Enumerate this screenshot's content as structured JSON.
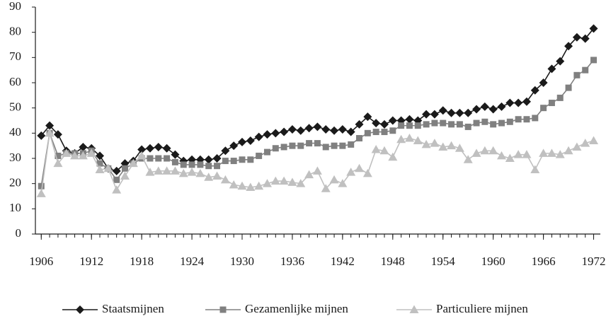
{
  "chart_data": {
    "type": "line",
    "x": [
      1906,
      1907,
      1908,
      1909,
      1910,
      1911,
      1912,
      1913,
      1914,
      1915,
      1916,
      1917,
      1918,
      1919,
      1920,
      1921,
      1922,
      1923,
      1924,
      1925,
      1926,
      1927,
      1928,
      1929,
      1930,
      1931,
      1932,
      1933,
      1934,
      1935,
      1936,
      1937,
      1938,
      1939,
      1940,
      1941,
      1942,
      1943,
      1944,
      1945,
      1946,
      1947,
      1948,
      1949,
      1950,
      1951,
      1952,
      1953,
      1954,
      1955,
      1956,
      1957,
      1958,
      1959,
      1960,
      1961,
      1962,
      1963,
      1964,
      1965,
      1966,
      1967,
      1968,
      1969,
      1970,
      1971,
      1972
    ],
    "series": [
      {
        "name": "Staatsmijnen",
        "color": "#1a1a1a",
        "marker": "diamond",
        "values": [
          39,
          43,
          39.5,
          33,
          32,
          34.5,
          34,
          31,
          26,
          25,
          28,
          29,
          33.5,
          34,
          34.5,
          34,
          31.5,
          29,
          29.5,
          29.5,
          29.5,
          30,
          33,
          35,
          36.5,
          37,
          38.5,
          39.5,
          40,
          40.5,
          41.5,
          41,
          42,
          42.5,
          41.5,
          41,
          41.5,
          40.5,
          43.5,
          46.5,
          44,
          43.5,
          45,
          45,
          45.5,
          45,
          47.5,
          47.5,
          49,
          48,
          48,
          48,
          49.5,
          50.5,
          49.5,
          50.5,
          52,
          52,
          52.5,
          57,
          60,
          65.5,
          68.5,
          74.5,
          78,
          77.5,
          81.5
        ]
      },
      {
        "name": "Gezamenlijke mijnen",
        "color": "#808080",
        "marker": "square",
        "values": [
          19,
          40,
          31,
          32,
          32,
          32,
          33,
          28,
          26,
          21.5,
          26,
          28,
          30,
          30,
          30,
          30,
          28.5,
          27.5,
          27.5,
          27.5,
          27,
          27,
          29,
          29,
          29.5,
          29.5,
          31,
          32.5,
          34,
          34.5,
          35,
          35,
          36,
          36,
          34.5,
          35,
          35,
          35.5,
          38,
          40,
          40.5,
          40.5,
          41,
          43,
          43,
          43,
          43.5,
          44,
          44,
          43.5,
          43.5,
          42.5,
          44,
          44.5,
          43.5,
          44,
          44.5,
          45.5,
          45.5,
          46,
          50,
          52,
          54,
          58,
          63,
          65,
          69
        ]
      },
      {
        "name": "Particuliere mijnen",
        "color": "#c0c0c0",
        "marker": "triangle",
        "values": [
          16,
          40,
          28,
          32,
          31,
          31,
          32,
          25.5,
          26,
          17.5,
          23,
          28,
          31,
          24.5,
          25,
          25,
          25,
          24,
          24.5,
          24,
          22.5,
          23,
          21.5,
          19.5,
          19,
          18.5,
          19,
          20,
          21,
          21,
          20.5,
          20,
          23.5,
          25,
          18,
          21.5,
          20,
          24.5,
          26,
          24,
          33.5,
          33,
          30.5,
          37.5,
          38,
          37,
          35.5,
          36,
          34.5,
          35,
          34,
          29.5,
          32,
          33,
          33,
          31,
          30,
          31.5,
          31.5,
          25.5,
          32,
          32,
          31.5,
          33,
          34.5,
          36,
          37
        ]
      }
    ],
    "xlim": [
      1905.3,
      1972.8
    ],
    "xticks": [
      1906,
      1912,
      1918,
      1924,
      1930,
      1936,
      1942,
      1948,
      1954,
      1960,
      1966,
      1972
    ],
    "ylim": [
      0,
      90
    ],
    "yticks": [
      0,
      10,
      20,
      30,
      40,
      50,
      60,
      70,
      80,
      90
    ],
    "grid": false,
    "legend": "bottom"
  }
}
